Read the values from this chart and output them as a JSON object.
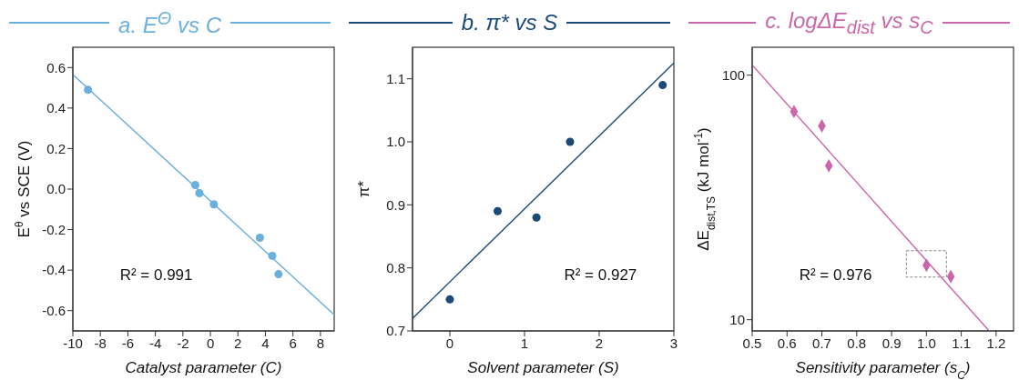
{
  "chart_data": [
    {
      "type": "scatter",
      "title": "a. E$^{Θ}$ vs C",
      "xlabel": "Catalyst parameter (C)",
      "ylabel": "E$^{θ}$ vs SCE (V)",
      "xlim": [
        -10,
        9
      ],
      "ylim": [
        -0.7,
        0.7
      ],
      "xticks": [
        -10,
        -8,
        -6,
        -4,
        -2,
        0,
        2,
        4,
        6,
        8
      ],
      "yticks": [
        {
          "value": -0.6,
          "label": "-0.6"
        },
        {
          "value": -0.4,
          "label": "-0.4"
        },
        {
          "value": -0.2,
          "label": "-0.2"
        },
        {
          "value": 0,
          "label": "0.0"
        },
        {
          "value": 0.2,
          "label": "0.2"
        },
        {
          "value": 0.4,
          "label": "0.4"
        },
        {
          "value": 0.6,
          "label": "0.6"
        }
      ],
      "annotations": [
        "R² = 0.991"
      ],
      "series": [
        {
          "marker": "circle",
          "color": "#6ab0dc",
          "x": [
            -8.9,
            -1.1,
            -0.8,
            0.25,
            3.6,
            4.5,
            4.95
          ],
          "values": [
            0.49,
            0.02,
            -0.02,
            -0.075,
            -0.24,
            -0.33,
            -0.42
          ]
        },
        {
          "type": "line",
          "marker": "none",
          "color": "#6ab0dc",
          "x": [
            -10,
            9
          ],
          "values": [
            0.565,
            -0.62
          ]
        }
      ]
    },
    {
      "type": "scatter",
      "title": "b. π* vs S",
      "xlabel": "Solvent parameter (S)",
      "ylabel": "π*",
      "xlim": [
        -0.5,
        3
      ],
      "ylim": [
        0.7,
        1.15
      ],
      "xticks": [
        0,
        1,
        2,
        3
      ],
      "yticks": [
        0.7,
        0.8,
        0.9,
        {
          "value": 1,
          "label": "1.0"
        },
        1.1
      ],
      "annotations": [
        "R² = 0.927"
      ],
      "series": [
        {
          "marker": "circle",
          "color": "#1a4a78",
          "x": [
            0,
            0.64,
            1.16,
            1.61,
            2.85
          ],
          "values": [
            0.75,
            0.89,
            0.88,
            1.0,
            1.09
          ]
        },
        {
          "type": "line",
          "marker": "none",
          "color": "#1a4a78",
          "x": [
            -0.5,
            3
          ],
          "values": [
            0.72,
            1.125
          ]
        }
      ]
    },
    {
      "type": "scatter",
      "title": "c. logΔE$_{dist}$ vs s$_{C}$",
      "xlabel": "Sensitivity parameter (s$_{C}$)",
      "ylabel": "ΔE$_{dist,TS}$ (kJ mol$^{-1}$)",
      "log": "y",
      "xlim": [
        0.5,
        1.25
      ],
      "ylim": [
        9,
        130
      ],
      "xticks": [
        0.5,
        0.6,
        0.7,
        0.8,
        0.9,
        {
          "value": 1,
          "label": "1.0"
        },
        1.1,
        1.2
      ],
      "yticks": [
        10,
        100
      ],
      "annotations": [
        "R² = 0.976"
      ],
      "series": [
        {
          "marker": "diamond",
          "color": "#cc66aa",
          "x": [
            0.62,
            0.7,
            0.72,
            1.0,
            1.07
          ],
          "values": [
            71,
            62,
            42.6,
            16.7,
            15
          ]
        },
        {
          "type": "line",
          "marker": "none",
          "color": "#cc66aa",
          "x": [
            0.5,
            1.18
          ],
          "values": [
            110,
            9
          ]
        }
      ]
    }
  ]
}
